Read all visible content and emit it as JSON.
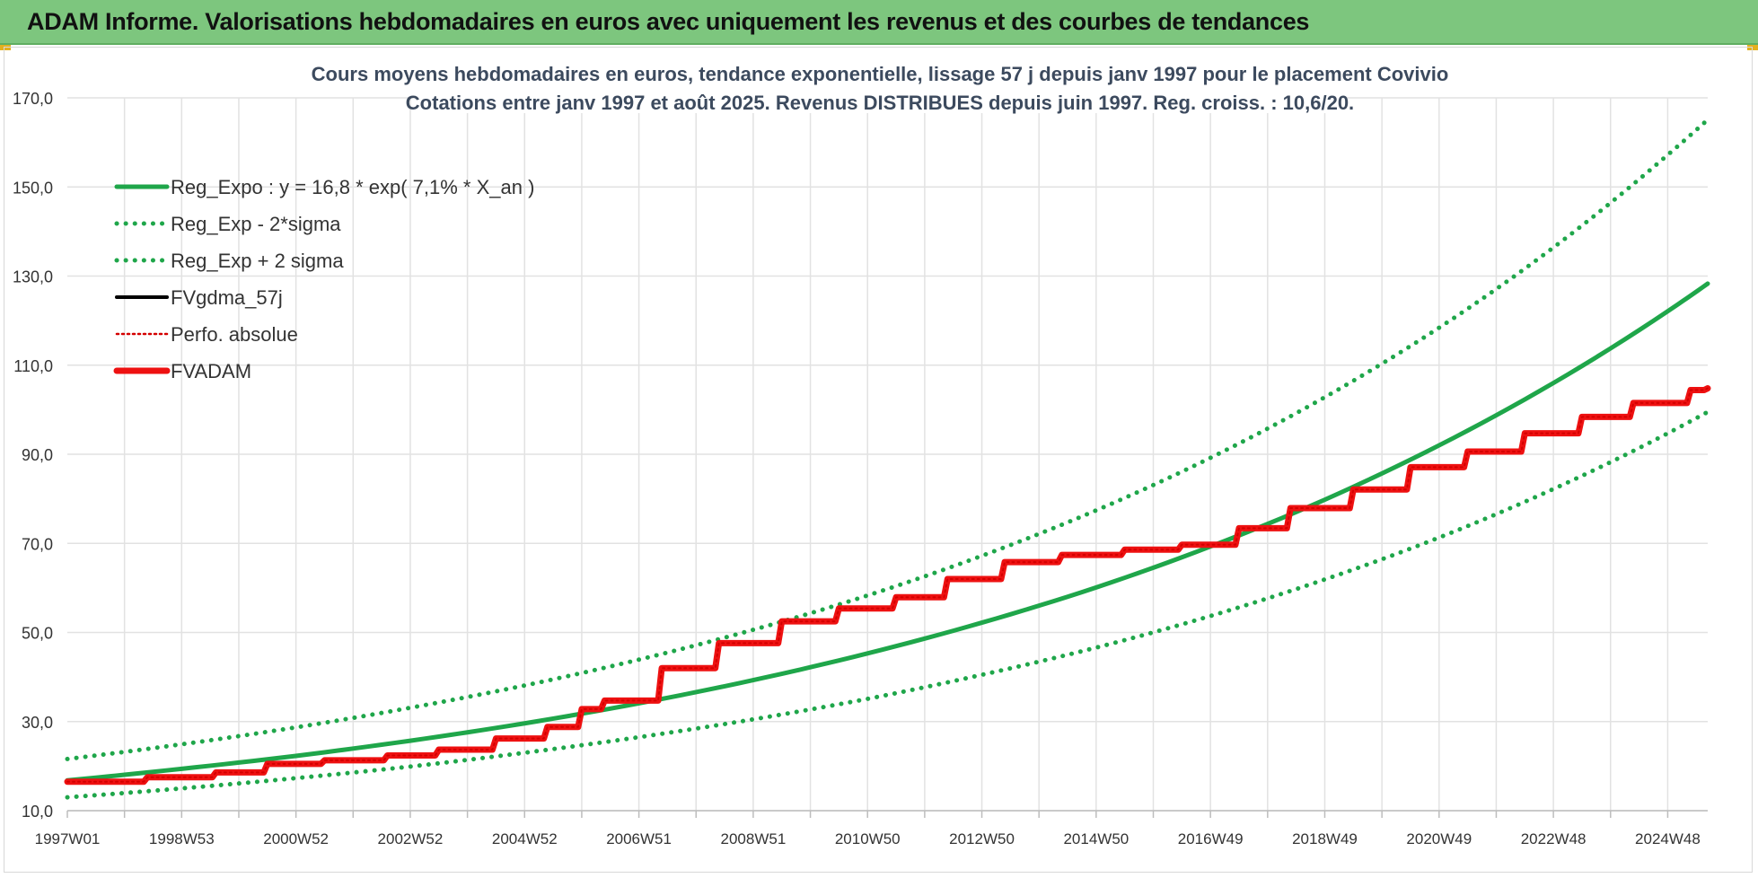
{
  "header": {
    "title": "ADAM Informe. Valorisations hebdomadaires en euros avec uniquement les revenus et des courbes de tendances"
  },
  "colors": {
    "header_bg": "#7dc67e",
    "reg_expo": "#1fa64a",
    "sigma": "#1fa64a",
    "fvgdma": "#000000",
    "perfo": "#d40000",
    "fvadam": "#ee1111",
    "grid": "#e2e2e2"
  },
  "chart_data": {
    "type": "line",
    "title_lines": [
      "Cours moyens hebdomadaires en euros, tendance exponentielle, lissage 57 j depuis janv 1997 pour le placement Covivio",
      "Cotations entre janv 1997 et août 2025. Revenus DISTRIBUES depuis juin 1997. Reg. croiss. : 10,6/20."
    ],
    "ylim": [
      10,
      170
    ],
    "yticks": [
      "10,0",
      "30,0",
      "50,0",
      "70,0",
      "90,0",
      "110,0",
      "130,0",
      "150,0",
      "170,0"
    ],
    "ytick_values": [
      10,
      30,
      50,
      70,
      90,
      110,
      130,
      150,
      170
    ],
    "xlim": [
      1997.0,
      2025.7
    ],
    "xticks": [
      {
        "label": "1997W01",
        "year": 1997.0
      },
      {
        "label": "1998W53",
        "year": 1999.0
      },
      {
        "label": "2000W52",
        "year": 2001.0
      },
      {
        "label": "2002W52",
        "year": 2003.0
      },
      {
        "label": "2004W52",
        "year": 2005.0
      },
      {
        "label": "2006W51",
        "year": 2007.0
      },
      {
        "label": "2008W51",
        "year": 2009.0
      },
      {
        "label": "2010W50",
        "year": 2011.0
      },
      {
        "label": "2012W50",
        "year": 2013.0
      },
      {
        "label": "2014W50",
        "year": 2015.0
      },
      {
        "label": "2016W49",
        "year": 2017.0
      },
      {
        "label": "2018W49",
        "year": 2019.0
      },
      {
        "label": "2020W49",
        "year": 2021.0
      },
      {
        "label": "2022W48",
        "year": 2023.0
      },
      {
        "label": "2024W48",
        "year": 2025.0
      }
    ],
    "grid": true,
    "legend_position": "top-left",
    "series": [
      {
        "name": "Reg_Expo : y = 16,8 * exp( 7,1% *  X_an )",
        "style": "solid-thick",
        "color": "#1fa64a",
        "x": [
          1997.0,
          1999.0,
          2001.0,
          2003.0,
          2005.0,
          2007.0,
          2009.0,
          2011.0,
          2013.0,
          2015.0,
          2017.0,
          2019.0,
          2021.0,
          2023.0,
          2025.0,
          2025.7
        ],
        "y": [
          16.8,
          19.4,
          22.3,
          25.7,
          29.6,
          34.1,
          39.3,
          45.3,
          52.2,
          60.1,
          69.3,
          79.8,
          92.0,
          106.0,
          122.1,
          128.3
        ]
      },
      {
        "name": "Reg_Exp - 2*sigma",
        "style": "dotted",
        "color": "#1fa64a",
        "x": [
          1997.0,
          1999.0,
          2001.0,
          2003.0,
          2005.0,
          2007.0,
          2009.0,
          2011.0,
          2013.0,
          2015.0,
          2017.0,
          2019.0,
          2021.0,
          2023.0,
          2025.0,
          2025.7
        ],
        "y": [
          13.0,
          15.0,
          17.3,
          19.9,
          23.0,
          26.5,
          30.5,
          35.1,
          40.5,
          46.6,
          53.7,
          61.9,
          71.3,
          82.2,
          94.7,
          99.5
        ]
      },
      {
        "name": "Reg_Exp + 2 sigma",
        "style": "dotted",
        "color": "#1fa64a",
        "x": [
          1997.0,
          1999.0,
          2001.0,
          2003.0,
          2005.0,
          2007.0,
          2009.0,
          2011.0,
          2013.0,
          2015.0,
          2017.0,
          2019.0,
          2021.0,
          2023.0,
          2025.0,
          2025.7
        ],
        "y": [
          21.6,
          24.9,
          28.7,
          33.1,
          38.1,
          43.9,
          50.6,
          58.3,
          67.2,
          77.4,
          89.2,
          102.8,
          118.4,
          136.4,
          157.2,
          165.1
        ]
      },
      {
        "name": "FVgdma_57j",
        "style": "solid",
        "color": "#000000",
        "x": [
          1997.0,
          1998.4,
          1999.6,
          2000.5,
          2001.5,
          2002.6,
          2003.5,
          2004.5,
          2005.4,
          2006.0,
          2006.4,
          2007.4,
          2008.4,
          2009.5,
          2010.5,
          2011.5,
          2012.4,
          2013.4,
          2014.4,
          2015.5,
          2016.5,
          2017.5,
          2018.4,
          2019.5,
          2020.5,
          2021.5,
          2022.5,
          2023.5,
          2024.4,
          2025.4,
          2025.7
        ],
        "y": [
          16.5,
          17.5,
          18.6,
          20.5,
          21.3,
          22.4,
          23.7,
          26.2,
          28.8,
          32.8,
          34.7,
          42.0,
          47.6,
          52.5,
          55.4,
          57.9,
          62.0,
          65.8,
          67.4,
          68.6,
          69.7,
          73.4,
          77.9,
          82.1,
          87.1,
          90.6,
          94.7,
          98.4,
          101.5,
          104.4,
          104.8
        ]
      },
      {
        "name": "Perfo. absolue",
        "style": "dotted",
        "color": "#d40000",
        "x": [
          1997.0,
          1998.4,
          1999.6,
          2000.5,
          2001.5,
          2002.6,
          2003.5,
          2004.5,
          2005.4,
          2006.0,
          2006.4,
          2007.4,
          2008.4,
          2009.5,
          2010.5,
          2011.5,
          2012.4,
          2013.4,
          2014.4,
          2015.5,
          2016.5,
          2017.5,
          2018.4,
          2019.5,
          2020.5,
          2021.5,
          2022.5,
          2023.5,
          2024.4,
          2025.4,
          2025.7
        ],
        "y": [
          16.5,
          17.5,
          18.6,
          20.5,
          21.3,
          22.4,
          23.7,
          26.2,
          28.8,
          32.8,
          34.7,
          42.0,
          47.6,
          52.5,
          55.4,
          57.9,
          62.0,
          65.8,
          67.4,
          68.6,
          69.7,
          73.4,
          77.9,
          82.1,
          87.1,
          90.6,
          94.7,
          98.4,
          101.5,
          104.4,
          104.8
        ]
      },
      {
        "name": "FVADAM",
        "style": "solid-thick",
        "color": "#ee1111",
        "x": [
          1997.0,
          1998.4,
          1999.6,
          2000.5,
          2001.5,
          2002.6,
          2003.5,
          2004.5,
          2005.4,
          2006.0,
          2006.4,
          2007.4,
          2008.4,
          2009.5,
          2010.5,
          2011.5,
          2012.4,
          2013.4,
          2014.4,
          2015.5,
          2016.5,
          2017.5,
          2018.4,
          2019.5,
          2020.5,
          2021.5,
          2022.5,
          2023.5,
          2024.4,
          2025.4,
          2025.7
        ],
        "y": [
          16.5,
          17.5,
          18.6,
          20.5,
          21.3,
          22.4,
          23.7,
          26.2,
          28.8,
          32.8,
          34.7,
          42.0,
          47.6,
          52.5,
          55.4,
          57.9,
          62.0,
          65.8,
          67.4,
          68.6,
          69.7,
          73.4,
          77.9,
          82.1,
          87.1,
          90.6,
          94.7,
          98.4,
          101.5,
          104.4,
          104.8
        ]
      }
    ]
  }
}
